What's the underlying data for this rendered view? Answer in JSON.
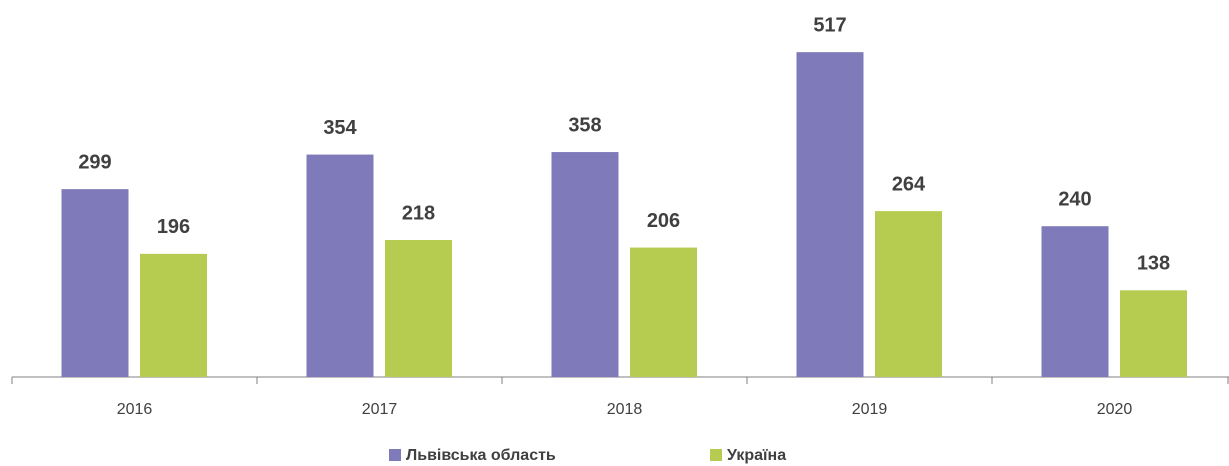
{
  "chart_data": {
    "type": "bar",
    "categories": [
      "2016",
      "2017",
      "2018",
      "2019",
      "2020"
    ],
    "series": [
      {
        "name": "Львівська область",
        "color": "#7f7bba",
        "values": [
          299,
          354,
          358,
          517,
          240
        ]
      },
      {
        "name": "Україна",
        "color": "#b5cc50",
        "values": [
          196,
          218,
          206,
          264,
          138
        ]
      }
    ],
    "ylim": [
      0,
      600
    ]
  }
}
